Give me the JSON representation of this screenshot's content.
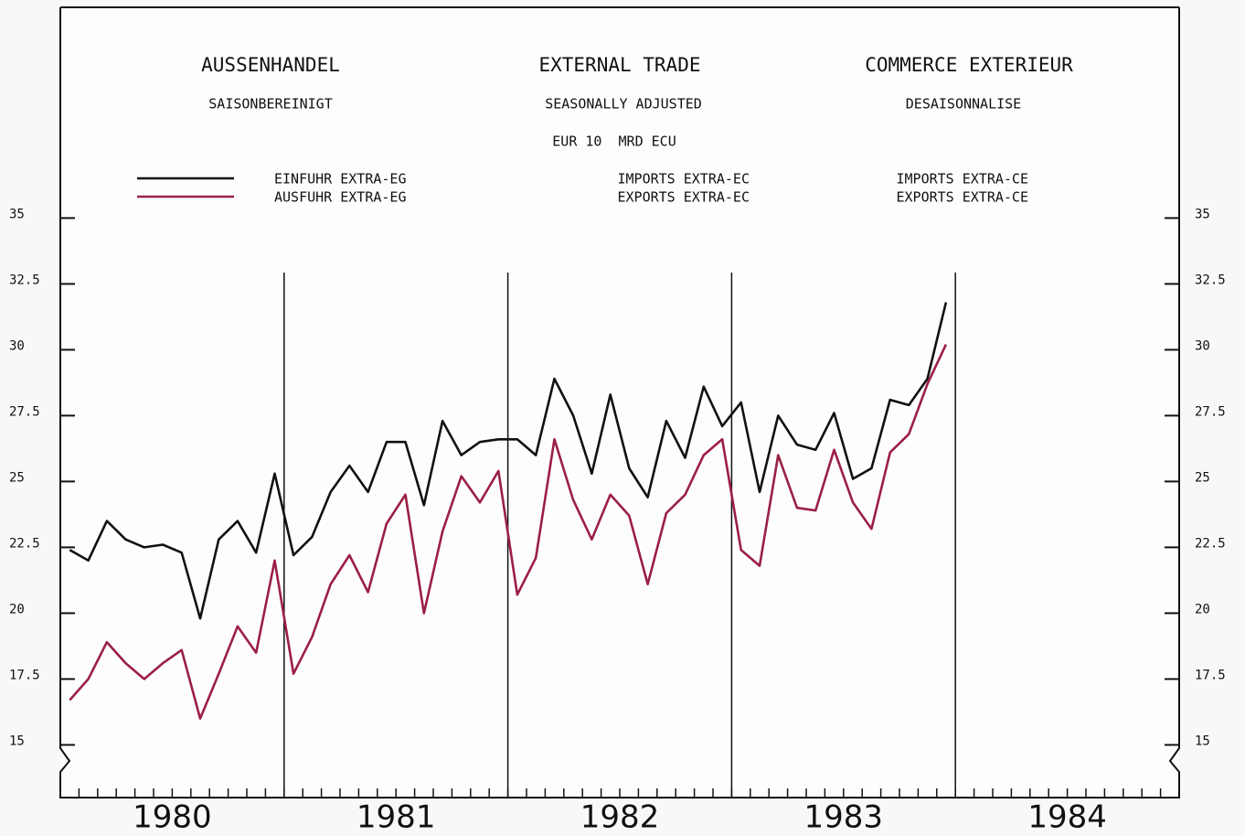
{
  "chart_data": {
    "type": "line",
    "title": [
      "AUSSENHANDEL",
      "EXTERNAL TRADE",
      "COMMERCE EXTERIEUR"
    ],
    "subtitle": [
      "SAISONBEREINIGT",
      "SEASONALLY ADJUSTED",
      "DESAISONNALISE"
    ],
    "unit": "EUR 10  MRD ECU",
    "xlim": [
      1980,
      1985
    ],
    "xticks": [
      {
        "value": 1980.5,
        "label": "1980"
      },
      {
        "value": 1981.5,
        "label": "1981"
      },
      {
        "value": 1982.5,
        "label": "1982"
      },
      {
        "value": 1983.5,
        "label": "1983"
      },
      {
        "value": 1984.5,
        "label": "1984"
      }
    ],
    "ylim": [
      13,
      43
    ],
    "yticks": [
      15,
      17.5,
      20,
      22.5,
      25,
      27.5,
      30,
      32.5,
      35
    ],
    "x": [
      1980.042,
      1980.125,
      1980.208,
      1980.292,
      1980.375,
      1980.458,
      1980.542,
      1980.625,
      1980.708,
      1980.792,
      1980.875,
      1980.958,
      1981.042,
      1981.125,
      1981.208,
      1981.292,
      1981.375,
      1981.458,
      1981.542,
      1981.625,
      1981.708,
      1981.792,
      1981.875,
      1981.958,
      1982.042,
      1982.125,
      1982.208,
      1982.292,
      1982.375,
      1982.458,
      1982.542,
      1982.625,
      1982.708,
      1982.792,
      1982.875,
      1982.958,
      1983.042,
      1983.125,
      1983.208,
      1983.292,
      1983.375,
      1983.458,
      1983.542,
      1983.625,
      1983.708,
      1983.792,
      1983.875,
      1983.958
    ],
    "series": [
      {
        "name": "EINFUHR EXTRA-EG",
        "name_en": "IMPORTS EXTRA-EC",
        "name_fr": "IMPORTS EXTRA-CE",
        "color": "#111111",
        "values": [
          22.4,
          22.0,
          23.5,
          22.8,
          22.5,
          22.6,
          22.3,
          19.8,
          22.8,
          23.5,
          22.3,
          25.3,
          22.2,
          22.9,
          24.6,
          25.6,
          24.6,
          26.5,
          26.5,
          24.1,
          27.3,
          26.0,
          26.5,
          26.6,
          26.6,
          26.0,
          28.9,
          27.5,
          25.3,
          28.3,
          25.5,
          24.4,
          27.3,
          25.9,
          28.6,
          27.1,
          28.0,
          24.6,
          27.5,
          26.4,
          26.2,
          27.6,
          25.1,
          25.5,
          28.1,
          27.9,
          28.9,
          31.8
        ]
      },
      {
        "name": "AUSFUHR EXTRA-EG",
        "name_en": "EXPORTS EXTRA-EC",
        "name_fr": "EXPORTS EXTRA-CE",
        "color": "#9b1f45",
        "values": [
          16.7,
          17.5,
          18.9,
          18.1,
          17.5,
          18.1,
          18.6,
          16.0,
          17.7,
          19.5,
          18.5,
          22.0,
          17.7,
          19.1,
          21.1,
          22.2,
          20.8,
          23.4,
          24.5,
          20.0,
          23.1,
          25.2,
          24.2,
          25.4,
          20.7,
          22.1,
          26.6,
          24.3,
          22.8,
          24.5,
          23.7,
          21.1,
          23.8,
          24.5,
          26.0,
          26.6,
          22.4,
          21.8,
          26.0,
          24.0,
          23.9,
          26.2,
          24.2,
          23.2,
          26.1,
          26.8,
          28.7,
          30.2
        ]
      }
    ]
  }
}
